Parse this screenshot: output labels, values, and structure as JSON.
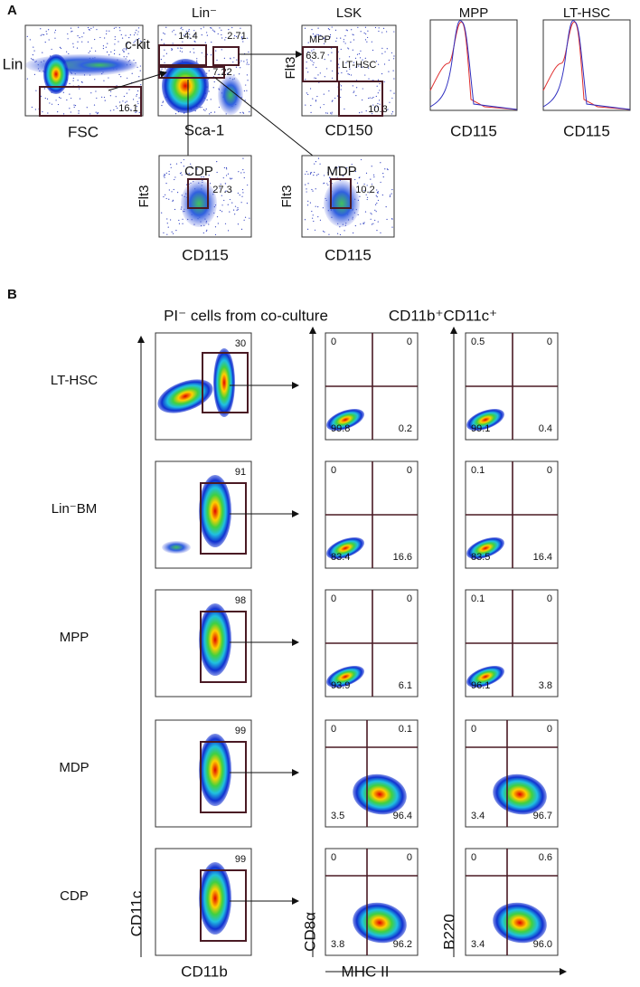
{
  "panel_a": {
    "label": "A",
    "plots": [
      {
        "y_label": "Lin",
        "x_label": "FSC",
        "gates": [
          {
            "value": "16.1"
          }
        ]
      },
      {
        "title": "Lin⁻",
        "y_label": "c-kit",
        "x_label": "Sca-1",
        "gates": [
          {
            "value": "14.4"
          },
          {
            "value": "2.71"
          },
          {
            "value": "7.22"
          }
        ]
      },
      {
        "title": "LSK",
        "y_label": "Flt3",
        "x_label": "CD150",
        "gates": [
          {
            "label": "MPP",
            "value": "63.7"
          },
          {
            "label": "LT-HSC",
            "value": "10.3"
          }
        ]
      },
      {
        "title": "MPP",
        "x_label": "CD115"
      },
      {
        "title": "LT-HSC",
        "x_label": "CD115"
      },
      {
        "y_label": "Flt3",
        "x_label": "CD115",
        "gates": [
          {
            "label": "CDP",
            "value": "27.3"
          }
        ]
      },
      {
        "y_label": "Flt3",
        "x_label": "CD115",
        "gates": [
          {
            "label": "MDP",
            "value": "10.2"
          }
        ]
      }
    ]
  },
  "panel_b": {
    "label": "B",
    "left_title": "PI⁻ cells from co-culture",
    "right_title": "CD11b⁺CD11c⁺",
    "left_y_label": "CD11c",
    "left_x_label": "CD11b",
    "mid_y_label": "CD8α",
    "right_y_label": "B220",
    "bottom_x_label": "MHC II",
    "rows": [
      {
        "label": "LT-HSC",
        "gate": "30",
        "cd8": [
          "0",
          "0",
          "99.8",
          "0.2"
        ],
        "b220": [
          "0.5",
          "0",
          "99.1",
          "0.4"
        ]
      },
      {
        "label": "Lin⁻BM",
        "gate": "91",
        "cd8": [
          "0",
          "0",
          "83.4",
          "16.6"
        ],
        "b220": [
          "0.1",
          "0",
          "83.5",
          "16.4"
        ]
      },
      {
        "label": "MPP",
        "gate": "98",
        "cd8": [
          "0",
          "0",
          "93.9",
          "6.1"
        ],
        "b220": [
          "0.1",
          "0",
          "96.1",
          "3.8"
        ]
      },
      {
        "label": "MDP",
        "gate": "99",
        "cd8": [
          "0",
          "0.1",
          "3.5",
          "96.4"
        ],
        "b220": [
          "0",
          "0",
          "3.4",
          "96.7"
        ]
      },
      {
        "label": "CDP",
        "gate": "99",
        "cd8": [
          "0",
          "0",
          "3.8",
          "96.2"
        ],
        "b220": [
          "0",
          "0.6",
          "3.4",
          "96.0"
        ]
      }
    ]
  }
}
